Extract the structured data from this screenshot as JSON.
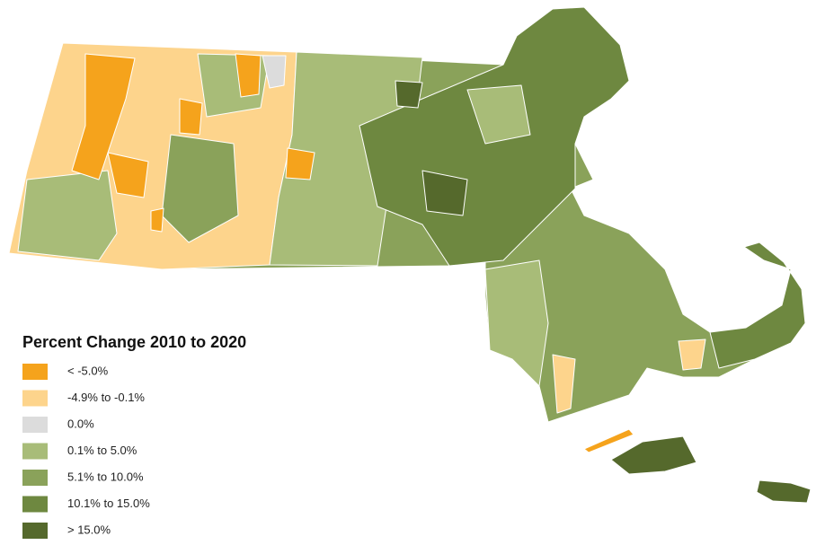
{
  "legend": {
    "title": "Percent Change 2010 to 2020",
    "items": [
      {
        "label": "< -5.0%",
        "color": "#f5a31c"
      },
      {
        "label": "-4.9% to -0.1%",
        "color": "#fdd48c"
      },
      {
        "label": "0.0%",
        "color": "#dcdcdc"
      },
      {
        "label": "0.1% to 5.0%",
        "color": "#a8bc78"
      },
      {
        "label": "5.1% to 10.0%",
        "color": "#8aa25a"
      },
      {
        "label": "10.1% to 15.0%",
        "color": "#6e8840"
      },
      {
        "label": "> 15.0%",
        "color": "#55692c"
      }
    ]
  }
}
